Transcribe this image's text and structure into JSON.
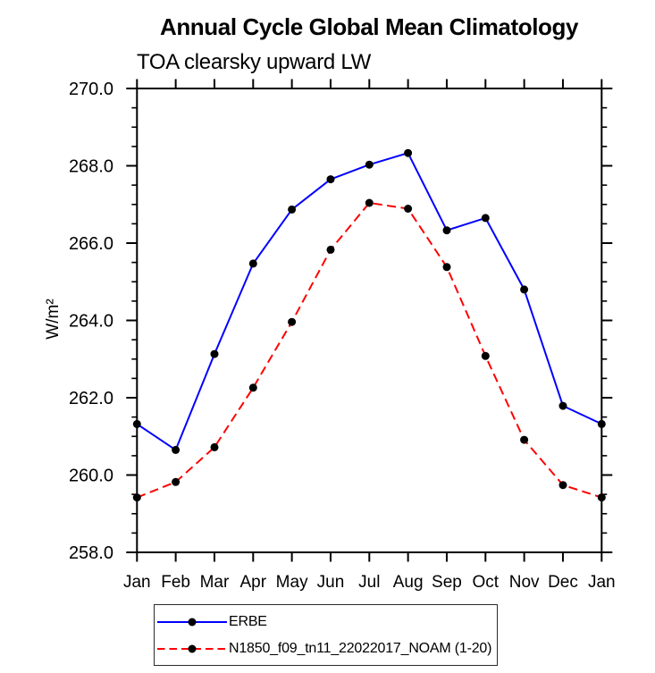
{
  "chart_data": {
    "type": "line",
    "title": "Annual Cycle Global Mean Climatology",
    "subtitle": "TOA clearsky upward LW",
    "ylabel": "W/m²",
    "xlabel": "",
    "x_categories": [
      "Jan",
      "Feb",
      "Mar",
      "Apr",
      "May",
      "Jun",
      "Jul",
      "Aug",
      "Sep",
      "Oct",
      "Nov",
      "Dec",
      "Jan"
    ],
    "ylim": [
      258.0,
      270.0
    ],
    "y_major_step": 2.0,
    "y_minor_step": 0.5,
    "y_tick_labels": [
      "258.0",
      "260.0",
      "262.0",
      "264.0",
      "266.0",
      "268.0",
      "270.0"
    ],
    "grid": false,
    "legend_position": "bottom-left",
    "frame_color": "#000000",
    "marker_color": "#000000",
    "series": [
      {
        "name": "ERBE",
        "color": "#0000ff",
        "line_style": "solid",
        "marker": "filled-circle",
        "values": [
          261.32,
          260.65,
          263.13,
          265.47,
          266.87,
          267.65,
          268.03,
          268.33,
          266.33,
          266.65,
          264.8,
          261.79,
          261.32
        ]
      },
      {
        "name": "N1850_f09_tn11_22022017_NOAM (1-20)",
        "color": "#ff0000",
        "line_style": "dashed",
        "marker": "filled-circle",
        "values": [
          259.42,
          259.82,
          260.72,
          262.26,
          263.96,
          265.83,
          267.04,
          266.89,
          265.38,
          263.08,
          260.91,
          259.74,
          259.42
        ]
      }
    ]
  }
}
